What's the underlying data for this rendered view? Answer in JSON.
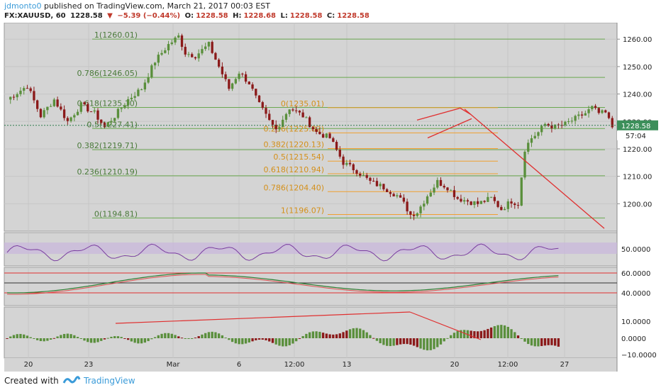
{
  "header": {
    "user": "jdmonto0",
    "published_text": "published on TradingView.com, March 21, 2017 00:03 EST",
    "symbol": "FX:XAUUSD, 60",
    "last": "1228.58",
    "change": "−5.39 (−0.44%)",
    "o_label": "O:",
    "o_value": "1228.58",
    "h_label": "H:",
    "h_value": "1228.68",
    "l_label": "L:",
    "l_value": "1228.58",
    "c_label": "C:",
    "c_value": "1228.58"
  },
  "footer": {
    "created_with": "Created with",
    "brand": "TradingView"
  },
  "colors": {
    "background": "#ffffff",
    "pane": "#d4d4d4",
    "up": "#5a8f3c",
    "down": "#8b1a1a",
    "fib_green": "#6aa84f",
    "fib_orange": "#f0a030",
    "trend": "#e03030",
    "rsi": "#7b3fa0",
    "rsi_band": "#c9b6dd",
    "label_green": "#4a7a3a",
    "label_orange": "#d4901a",
    "price_box": "#3c8f5a"
  },
  "chart_data": {
    "type": "candlestick",
    "price_axis": {
      "ticks": [
        "1260.00",
        "1250.00",
        "1240.00",
        "1230.00",
        "1220.00",
        "1210.00",
        "1200.00"
      ],
      "ylim": [
        1190,
        1266
      ],
      "last_price": "1228.58",
      "countdown": "57:04"
    },
    "time_axis": {
      "ticks": [
        "20",
        "23",
        "Mar",
        "6",
        "12:00",
        "13",
        "20",
        "12:00",
        "27"
      ]
    },
    "fib_green": {
      "labels": [
        "1(1260.01)",
        "0.786(1246.05)",
        "0.618(1235.10)",
        "0.5(1227.41)",
        "0.382(1219.71)",
        "0.236(1210.19)",
        "0(1194.81)"
      ],
      "values": [
        1260.01,
        1246.05,
        1235.1,
        1227.41,
        1219.71,
        1210.19,
        1194.81
      ]
    },
    "fib_orange": {
      "labels": [
        "0(1235.01)",
        "0.236(1225.82)",
        "0.382(1220.13)",
        "0.5(1215.54)",
        "0.618(1210.94)",
        "0.786(1204.40)",
        "1(1196.07)"
      ],
      "values": [
        1235.01,
        1225.82,
        1220.13,
        1215.54,
        1210.94,
        1204.4,
        1196.07
      ]
    },
    "price_keypoints": [
      [
        0,
        1238
      ],
      [
        6,
        1243
      ],
      [
        10,
        1232
      ],
      [
        14,
        1238
      ],
      [
        18,
        1230
      ],
      [
        22,
        1236
      ],
      [
        26,
        1233
      ],
      [
        29,
        1228
      ],
      [
        32,
        1232
      ],
      [
        36,
        1238
      ],
      [
        40,
        1242
      ],
      [
        44,
        1252
      ],
      [
        48,
        1258
      ],
      [
        51,
        1261
      ],
      [
        53,
        1255
      ],
      [
        56,
        1254
      ],
      [
        60,
        1258
      ],
      [
        63,
        1250
      ],
      [
        66,
        1242
      ],
      [
        69,
        1248
      ],
      [
        72,
        1244
      ],
      [
        75,
        1236
      ],
      [
        78,
        1230
      ],
      [
        80,
        1227
      ],
      [
        84,
        1235
      ],
      [
        88,
        1232
      ],
      [
        92,
        1226
      ],
      [
        96,
        1224
      ],
      [
        100,
        1215
      ],
      [
        104,
        1212
      ],
      [
        108,
        1208
      ],
      [
        112,
        1206
      ],
      [
        116,
        1203
      ],
      [
        118,
        1200
      ],
      [
        120,
        1196
      ],
      [
        122,
        1197
      ],
      [
        125,
        1203
      ],
      [
        128,
        1208
      ],
      [
        131,
        1206
      ],
      [
        134,
        1202
      ],
      [
        137,
        1201
      ],
      [
        140,
        1200
      ],
      [
        144,
        1202
      ],
      [
        147,
        1198
      ],
      [
        150,
        1201
      ],
      [
        152,
        1200
      ],
      [
        154,
        1220
      ],
      [
        156,
        1224
      ],
      [
        158,
        1226
      ],
      [
        160,
        1229
      ],
      [
        163,
        1228
      ],
      [
        166,
        1229
      ],
      [
        169,
        1231
      ],
      [
        172,
        1233
      ],
      [
        174,
        1235
      ],
      [
        176,
        1233
      ],
      [
        178,
        1233
      ],
      [
        180,
        1228
      ]
    ],
    "rsi": {
      "ticks": [
        "50.0000"
      ]
    },
    "stoch": {
      "ticks": [
        "60.0000",
        "40.0000"
      ]
    },
    "macd": {
      "ticks": [
        "10.0000",
        "0.0000",
        "−10.0000"
      ]
    }
  }
}
